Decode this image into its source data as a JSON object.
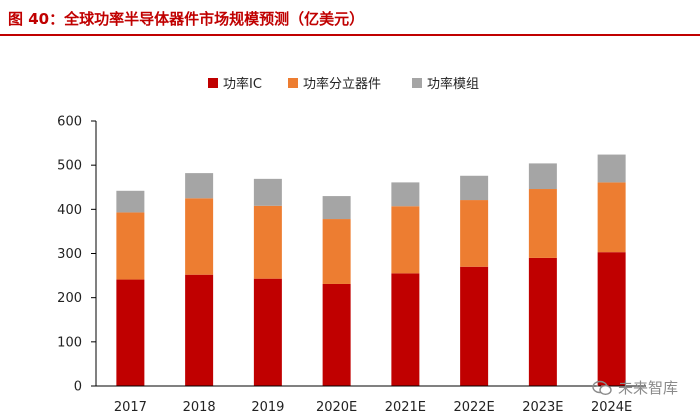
{
  "figure": {
    "title": "图 40：全球功率半导体器件市场规模预测（亿美元）"
  },
  "watermark": {
    "text": "未来智库",
    "icon": "wechat-icon"
  },
  "colors": {
    "title": "#c00000",
    "series": [
      "#c00000",
      "#ed7d31",
      "#a5a5a5"
    ]
  },
  "chart_data": {
    "type": "bar",
    "stacked": true,
    "categories": [
      "2017",
      "2018",
      "2019",
      "2020E",
      "2021E",
      "2022E",
      "2023E",
      "2024E"
    ],
    "series": [
      {
        "name": "功率IC",
        "values": [
          241,
          252,
          243,
          231,
          255,
          270,
          290,
          303
        ]
      },
      {
        "name": "功率分立器件",
        "values": [
          152,
          173,
          165,
          147,
          152,
          151,
          156,
          158
        ]
      },
      {
        "name": "功率模组",
        "values": [
          49,
          57,
          61,
          52,
          54,
          55,
          58,
          63
        ]
      }
    ],
    "title": "",
    "xlabel": "",
    "ylabel": "",
    "ylim": [
      0,
      600
    ],
    "yticks": [
      0,
      100,
      200,
      300,
      400,
      500,
      600
    ],
    "legend_position": "top-center",
    "grid": false
  }
}
